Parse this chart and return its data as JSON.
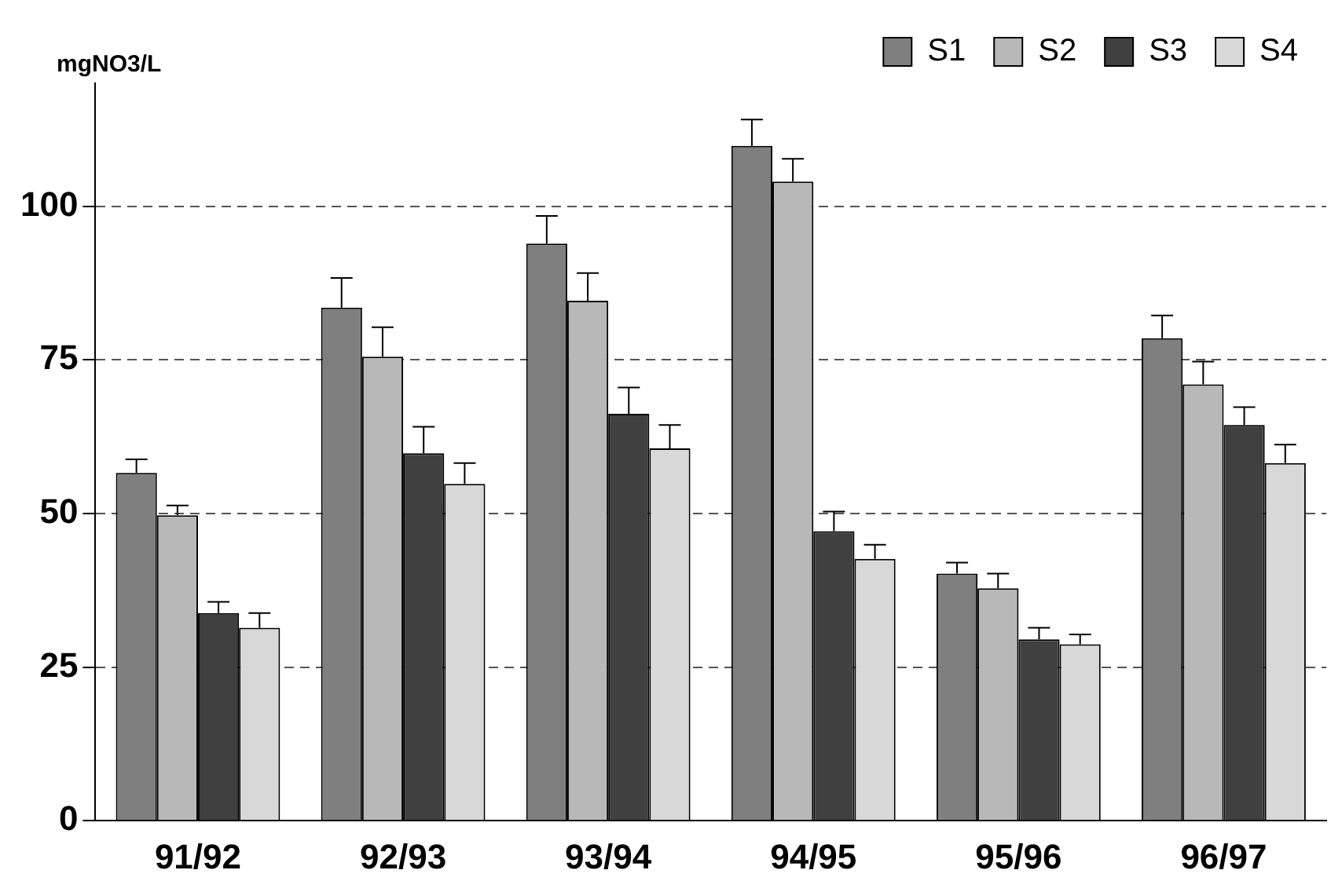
{
  "chart_data": {
    "type": "bar",
    "ylabel": "mgNO3/L",
    "categories": [
      "91/92",
      "92/93",
      "93/94",
      "94/95",
      "95/96",
      "96/97"
    ],
    "series": [
      {
        "name": "S1",
        "color": "#7f7f7f",
        "values": [
          56.6,
          83.5,
          93.9,
          109.8,
          40.2,
          78.5
        ],
        "errors": [
          [
            56.6,
            58.8
          ],
          [
            83.5,
            88.3
          ],
          [
            93.9,
            98.4
          ],
          [
            109.8,
            114.1
          ],
          [
            40.2,
            42
          ],
          [
            78.5,
            82.2
          ]
        ]
      },
      {
        "name": "S2",
        "color": "#b8b8b8",
        "values": [
          49.7,
          75.5,
          84.6,
          104,
          37.8,
          71
        ],
        "errors": [
          [
            49.7,
            51.3
          ],
          [
            75.5,
            80.3
          ],
          [
            84.6,
            89.1
          ],
          [
            104,
            107.7
          ],
          [
            37.8,
            40.2
          ],
          [
            71,
            74.7
          ]
        ]
      },
      {
        "name": "S3",
        "color": "#404040",
        "values": [
          33.8,
          59.8,
          66.2,
          47.1,
          29.5,
          64.4
        ],
        "errors": [
          [
            33.8,
            35.6
          ],
          [
            59.8,
            64.1
          ],
          [
            66.2,
            70.5
          ],
          [
            47.1,
            50.3
          ],
          [
            29.5,
            31.4
          ],
          [
            64.4,
            67.3
          ]
        ]
      },
      {
        "name": "S4",
        "color": "#d8d8d8",
        "values": [
          31.4,
          54.8,
          60.6,
          42.6,
          28.7,
          58.2
        ],
        "errors": [
          [
            31.4,
            33.8
          ],
          [
            54.8,
            58.2
          ],
          [
            60.6,
            64.4
          ],
          [
            42.6,
            44.9
          ],
          [
            28.7,
            30.3
          ],
          [
            58.2,
            61.2
          ]
        ]
      }
    ],
    "ylim": [
      0,
      120
    ],
    "yticks": [
      0,
      25,
      50,
      75,
      100
    ],
    "grid": "y",
    "line_style": "dashed",
    "legend": "top right"
  }
}
